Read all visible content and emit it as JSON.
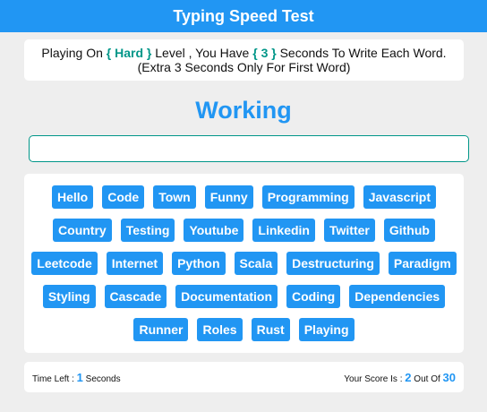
{
  "header": {
    "title": "Typing Speed Test"
  },
  "message": {
    "prefix": "Playing On",
    "level": "{ Hard }",
    "middle": "Level , You Have",
    "seconds": "{ 3 }",
    "suffix": "Seconds To Write Each Word.",
    "note": "(Extra 3 Seconds Only For First Word)"
  },
  "game": {
    "current_word": "Working",
    "input_value": ""
  },
  "words": [
    "Hello",
    "Code",
    "Town",
    "Funny",
    "Programming",
    "Javascript",
    "Country",
    "Testing",
    "Youtube",
    "Linkedin",
    "Twitter",
    "Github",
    "Leetcode",
    "Internet",
    "Python",
    "Scala",
    "Destructuring",
    "Paradigm",
    "Styling",
    "Cascade",
    "Documentation",
    "Coding",
    "Dependencies",
    "Runner",
    "Roles",
    "Rust",
    "Playing"
  ],
  "footer": {
    "time_label": "Time Left :",
    "time_value": "1",
    "time_unit": "Seconds",
    "score_label": "Your Score Is :",
    "score_value": "2",
    "score_mid": "Out Of",
    "score_total": "30"
  },
  "colors": {
    "primary": "#2196f3",
    "accent": "#009688",
    "background": "#eeeeee"
  }
}
